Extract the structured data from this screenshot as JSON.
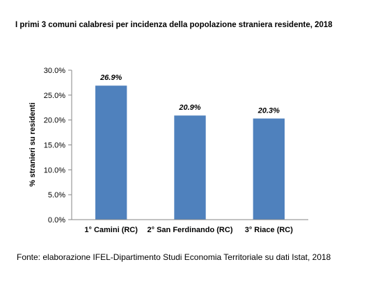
{
  "chart_data": {
    "type": "bar",
    "title": "I primi 3 comuni calabresi per incidenza della popolazione straniera residente, 2018",
    "ylabel": "% stranieri su residenti",
    "xlabel": "",
    "categories": [
      "1° Camini (RC)",
      "2° San Ferdinando  (RC)",
      "3° Riace (RC)"
    ],
    "values": [
      26.9,
      20.9,
      20.3
    ],
    "data_labels": [
      "26.9%",
      "20.9%",
      "20.3%"
    ],
    "ylim": [
      0,
      30
    ],
    "yticks": [
      0,
      5,
      10,
      15,
      20,
      25,
      30
    ],
    "ytick_labels": [
      "0.0%",
      "5.0%",
      "10.0%",
      "15.0%",
      "20.0%",
      "25.0%",
      "30.0%"
    ],
    "grid": false,
    "legend": "none",
    "bar_color": "#4F81BD"
  },
  "footer": {
    "source": "Fonte: elaborazione IFEL-Dipartimento Studi Economia Territoriale su dati Istat, 2018"
  }
}
